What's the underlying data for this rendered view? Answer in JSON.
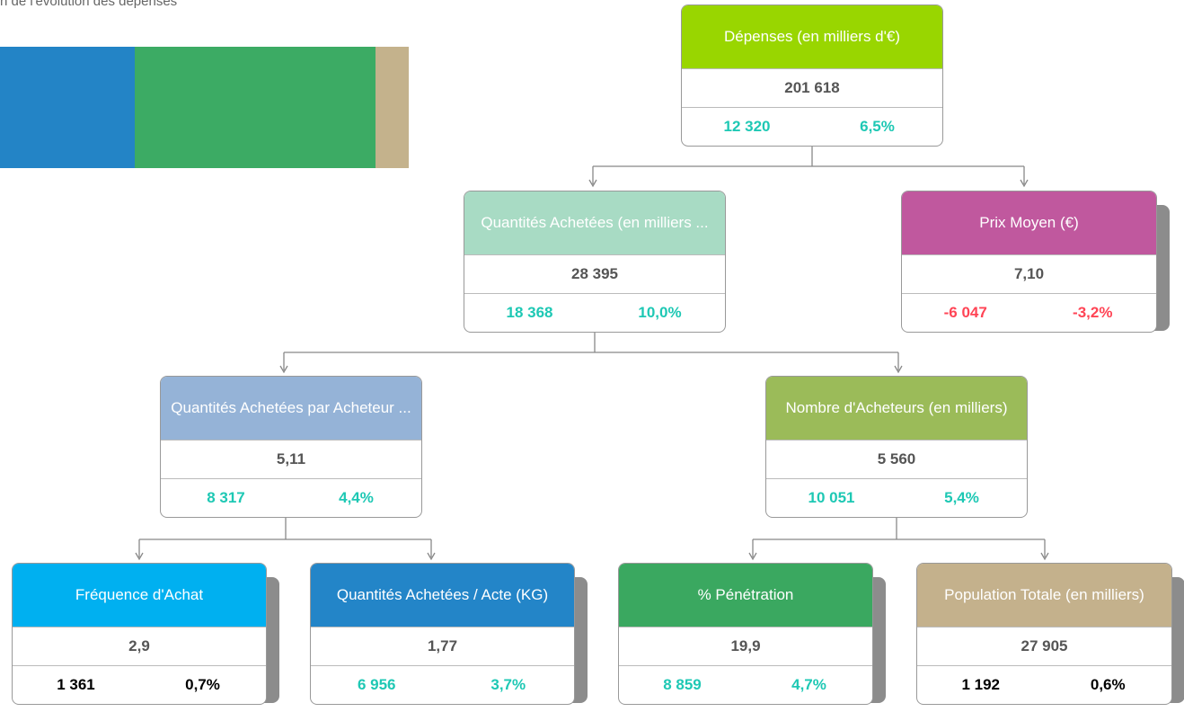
{
  "header": {
    "title": "n de l'évolution des dépenses"
  },
  "nodes": [
    {
      "title": "Dépenses (en milliers d'€)",
      "value": "201 618",
      "change": "12 320",
      "pct": "6,5%",
      "header_color": "#99d600",
      "change_color": "#1ec8b4"
    },
    {
      "title": "Quantités Achetées (en milliers ...",
      "value": "28 395",
      "change": "18 368",
      "pct": "10,0%",
      "header_color": "#a8dbc4",
      "change_color": "#1ec8b4"
    },
    {
      "title": "Prix Moyen (€)",
      "value": "7,10",
      "change": "-6 047",
      "pct": "-3,2%",
      "header_color": "#c0589e",
      "change_color": "#ff4455"
    },
    {
      "title": "Quantités Achetées par Acheteur ...",
      "value": "5,11",
      "change": "8 317",
      "pct": "4,4%",
      "header_color": "#95b3d7",
      "change_color": "#1ec8b4"
    },
    {
      "title": "Nombre d'Acheteurs (en milliers)",
      "value": "5 560",
      "change": "10 051",
      "pct": "5,4%",
      "header_color": "#9bbb59",
      "change_color": "#1ec8b4"
    },
    {
      "title": "Fréquence d'Achat",
      "value": "2,9",
      "change": "1 361",
      "pct": "0,7%",
      "header_color": "#00b0f0",
      "change_color": "#000000"
    },
    {
      "title": "Quantités Achetées / Acte (KG)",
      "value": "1,77",
      "change": "6 956",
      "pct": "3,7%",
      "header_color": "#2385c8",
      "change_color": "#1ec8b4"
    },
    {
      "title": "% Pénétration",
      "value": "19,9",
      "change": "8 859",
      "pct": "4,7%",
      "header_color": "#3aa860",
      "change_color": "#1ec8b4"
    },
    {
      "title": "Population Totale (en milliers)",
      "value": "27 905",
      "change": "1 192",
      "pct": "0,6%",
      "header_color": "#c4b18c",
      "change_color": "#000000"
    }
  ]
}
